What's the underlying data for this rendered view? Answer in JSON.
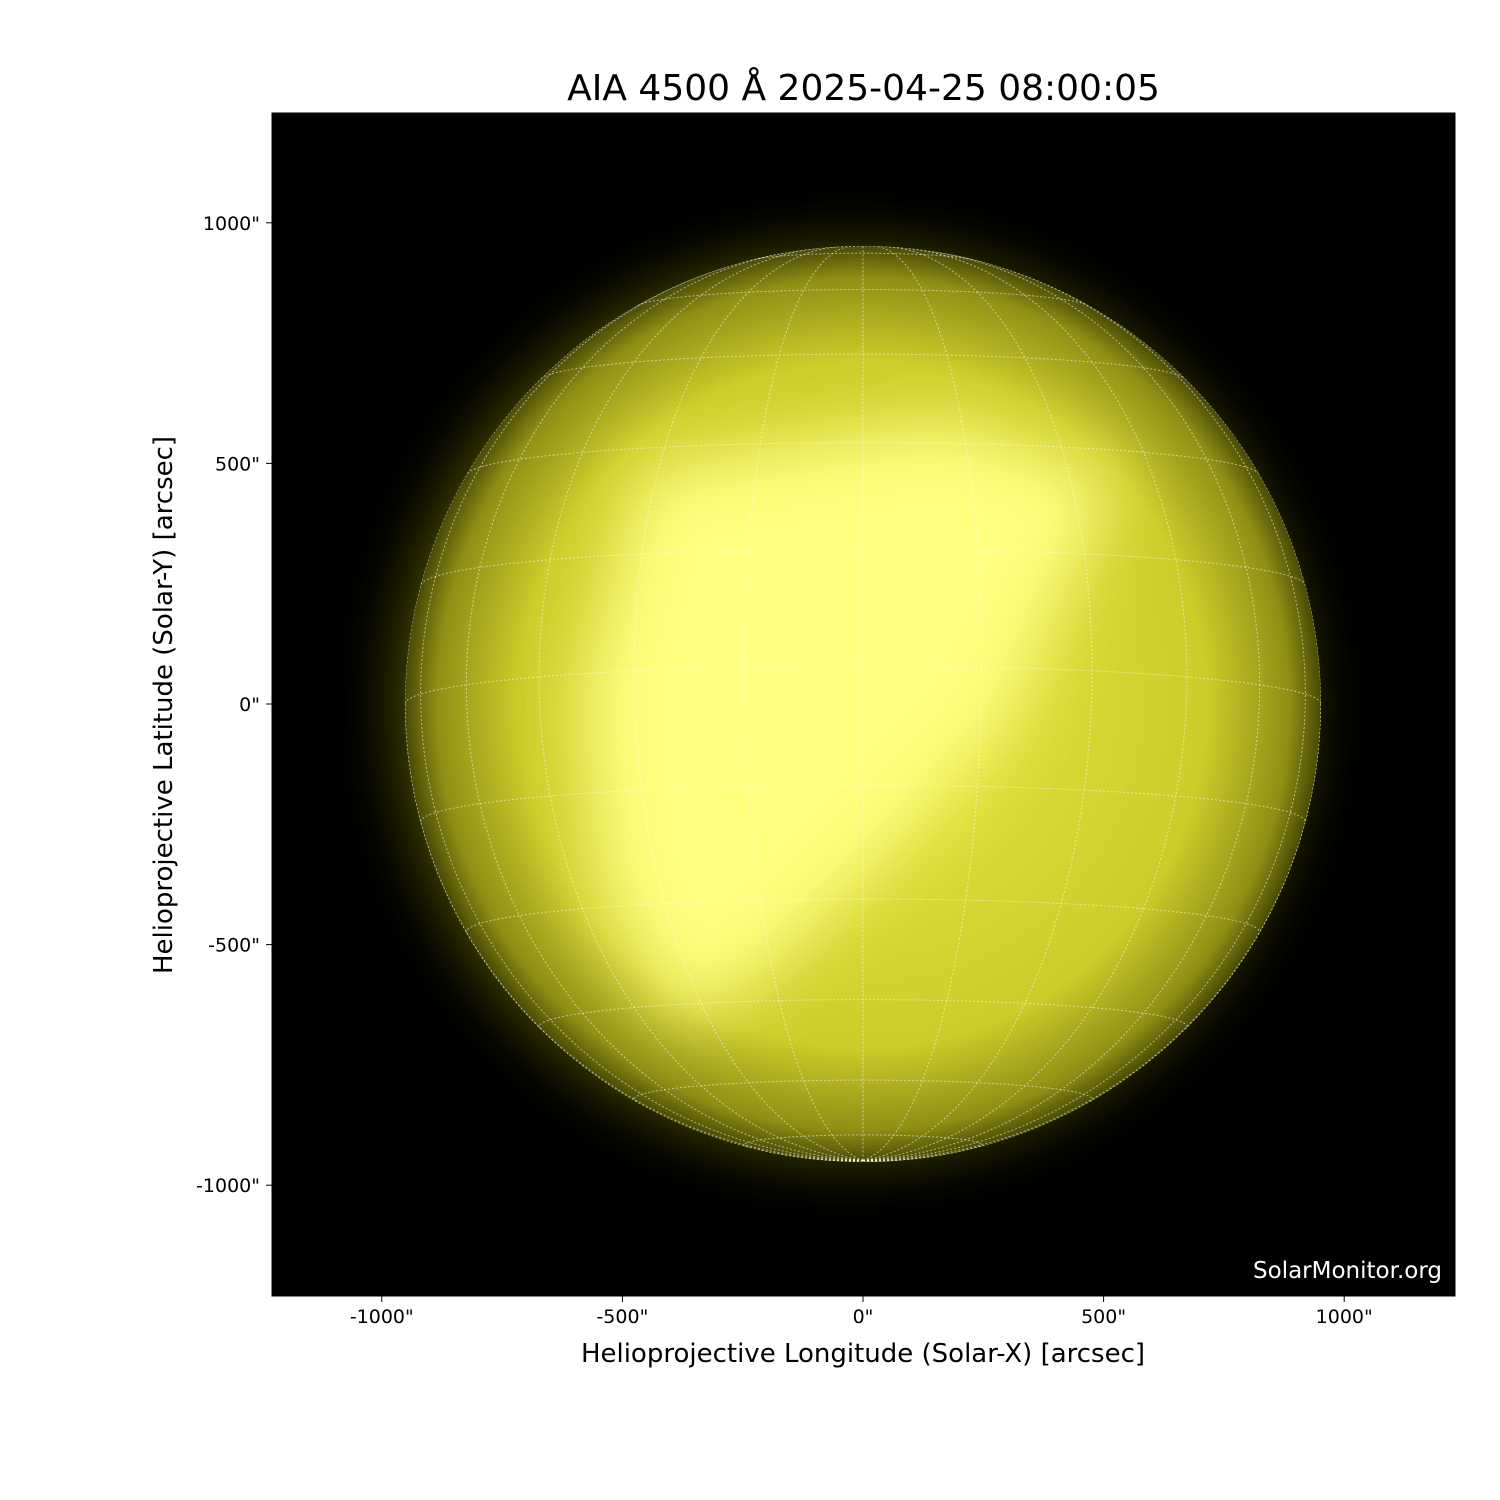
{
  "title": "AIA 4500 Å 2025-04-25 08:00:05",
  "watermark": "SolarMonitor.org",
  "x_axis": {
    "label": "Helioprojective Longitude (Solar-X) [arcsec]",
    "ticks": [
      -1000,
      -500,
      0,
      500,
      1000
    ],
    "tick_labels": [
      "-1000\"",
      "-500\"",
      "0\"",
      "500\"",
      "1000\""
    ],
    "range": [
      -1230,
      1230
    ]
  },
  "y_axis": {
    "label": "Helioprojective Latitude (Solar-Y) [arcsec]",
    "ticks": [
      1000,
      500,
      0,
      -500,
      -1000
    ],
    "tick_labels": [
      "1000\"",
      "500\"",
      "0\"",
      "-500\"",
      "-1000\""
    ],
    "range": [
      -1230,
      1230
    ]
  },
  "image": {
    "subject": "solar disk",
    "colormap": "yellow",
    "background": "#000000",
    "disk_color": "#d8d830",
    "bright_color": "#ffff80",
    "grid_color": "#ffffff",
    "grid_spacing_deg": 15,
    "solar_radius_arcsec": 952
  }
}
